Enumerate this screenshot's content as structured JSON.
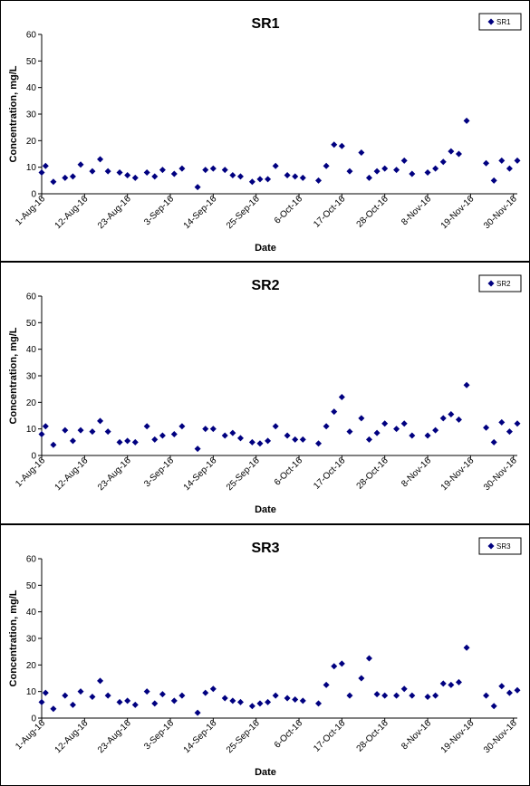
{
  "colors": {
    "marker": "#000080",
    "axis": "#000000",
    "border": "#000000",
    "background": "#ffffff"
  },
  "chart_data": [
    {
      "type": "scatter",
      "title": "SR1",
      "xlabel": "Date",
      "ylabel": "Concentration, mg/L",
      "ylim": [
        0,
        60
      ],
      "yticks": [
        "0",
        "10",
        "20",
        "30",
        "40",
        "50",
        "60"
      ],
      "xlim": [
        "2016-08-01",
        "2016-12-01"
      ],
      "xticks": [
        "1-Aug-16",
        "12-Aug-16",
        "23-Aug-16",
        "3-Sep-16",
        "14-Sep-16",
        "25-Sep-16",
        "6-Oct-16",
        "17-Oct-16",
        "28-Oct-16",
        "8-Nov-16",
        "19-Nov-16",
        "30-Nov-16"
      ],
      "grid": false,
      "legend": "top-right",
      "series": [
        {
          "name": "SR1",
          "points": [
            [
              "2016-08-01",
              8
            ],
            [
              "2016-08-02",
              10.5
            ],
            [
              "2016-08-04",
              4.5
            ],
            [
              "2016-08-07",
              6
            ],
            [
              "2016-08-09",
              6.5
            ],
            [
              "2016-08-11",
              11
            ],
            [
              "2016-08-14",
              8.5
            ],
            [
              "2016-08-16",
              13
            ],
            [
              "2016-08-18",
              8.5
            ],
            [
              "2016-08-21",
              8
            ],
            [
              "2016-08-23",
              7
            ],
            [
              "2016-08-25",
              6
            ],
            [
              "2016-08-28",
              8
            ],
            [
              "2016-08-30",
              6.5
            ],
            [
              "2016-09-01",
              9
            ],
            [
              "2016-09-04",
              7.5
            ],
            [
              "2016-09-06",
              9.5
            ],
            [
              "2016-09-10",
              2.5
            ],
            [
              "2016-09-12",
              9
            ],
            [
              "2016-09-14",
              9.5
            ],
            [
              "2016-09-17",
              9
            ],
            [
              "2016-09-19",
              7
            ],
            [
              "2016-09-21",
              6.5
            ],
            [
              "2016-09-24",
              4.5
            ],
            [
              "2016-09-26",
              5.5
            ],
            [
              "2016-09-28",
              5.5
            ],
            [
              "2016-09-30",
              10.5
            ],
            [
              "2016-10-03",
              7
            ],
            [
              "2016-10-05",
              6.5
            ],
            [
              "2016-10-07",
              6
            ],
            [
              "2016-10-11",
              5
            ],
            [
              "2016-10-13",
              10.5
            ],
            [
              "2016-10-15",
              18.5
            ],
            [
              "2016-10-17",
              18
            ],
            [
              "2016-10-19",
              8.5
            ],
            [
              "2016-10-22",
              15.5
            ],
            [
              "2016-10-24",
              6
            ],
            [
              "2016-10-26",
              8.5
            ],
            [
              "2016-10-28",
              9.5
            ],
            [
              "2016-10-31",
              9
            ],
            [
              "2016-11-02",
              12.5
            ],
            [
              "2016-11-04",
              7.5
            ],
            [
              "2016-11-08",
              8
            ],
            [
              "2016-11-10",
              9.5
            ],
            [
              "2016-11-12",
              12
            ],
            [
              "2016-11-14",
              16
            ],
            [
              "2016-11-16",
              15
            ],
            [
              "2016-11-18",
              27.5
            ],
            [
              "2016-11-23",
              11.5
            ],
            [
              "2016-11-25",
              5
            ],
            [
              "2016-11-27",
              12.5
            ],
            [
              "2016-11-29",
              9.5
            ],
            [
              "2016-12-01",
              12.5
            ]
          ]
        }
      ]
    },
    {
      "type": "scatter",
      "title": "SR2",
      "xlabel": "Date",
      "ylabel": "Concentration, mg/L",
      "ylim": [
        0,
        60
      ],
      "yticks": [
        "0",
        "10",
        "20",
        "30",
        "40",
        "50",
        "60"
      ],
      "xlim": [
        "2016-08-01",
        "2016-12-01"
      ],
      "xticks": [
        "1-Aug-16",
        "12-Aug-16",
        "23-Aug-16",
        "3-Sep-16",
        "14-Sep-16",
        "25-Sep-16",
        "6-Oct-16",
        "17-Oct-16",
        "28-Oct-16",
        "8-Nov-16",
        "19-Nov-16",
        "30-Nov-16"
      ],
      "grid": false,
      "legend": "top-right",
      "series": [
        {
          "name": "SR2",
          "points": [
            [
              "2016-08-01",
              8
            ],
            [
              "2016-08-02",
              11
            ],
            [
              "2016-08-04",
              4
            ],
            [
              "2016-08-07",
              9.5
            ],
            [
              "2016-08-09",
              5.5
            ],
            [
              "2016-08-11",
              9.5
            ],
            [
              "2016-08-14",
              9
            ],
            [
              "2016-08-16",
              13
            ],
            [
              "2016-08-18",
              9
            ],
            [
              "2016-08-21",
              5
            ],
            [
              "2016-08-23",
              5.5
            ],
            [
              "2016-08-25",
              5
            ],
            [
              "2016-08-28",
              11
            ],
            [
              "2016-08-30",
              6
            ],
            [
              "2016-09-01",
              7.5
            ],
            [
              "2016-09-04",
              8
            ],
            [
              "2016-09-06",
              11
            ],
            [
              "2016-09-10",
              2.5
            ],
            [
              "2016-09-12",
              10
            ],
            [
              "2016-09-14",
              10
            ],
            [
              "2016-09-17",
              7.5
            ],
            [
              "2016-09-19",
              8.5
            ],
            [
              "2016-09-21",
              6.5
            ],
            [
              "2016-09-24",
              5
            ],
            [
              "2016-09-26",
              4.5
            ],
            [
              "2016-09-28",
              5.5
            ],
            [
              "2016-09-30",
              11
            ],
            [
              "2016-10-03",
              7.5
            ],
            [
              "2016-10-05",
              6
            ],
            [
              "2016-10-07",
              6
            ],
            [
              "2016-10-11",
              4.5
            ],
            [
              "2016-10-13",
              11
            ],
            [
              "2016-10-15",
              16.5
            ],
            [
              "2016-10-17",
              22
            ],
            [
              "2016-10-19",
              9
            ],
            [
              "2016-10-22",
              14
            ],
            [
              "2016-10-24",
              6
            ],
            [
              "2016-10-26",
              8.5
            ],
            [
              "2016-10-28",
              12
            ],
            [
              "2016-10-31",
              10
            ],
            [
              "2016-11-02",
              12
            ],
            [
              "2016-11-04",
              7.5
            ],
            [
              "2016-11-08",
              7.5
            ],
            [
              "2016-11-10",
              9.5
            ],
            [
              "2016-11-12",
              14
            ],
            [
              "2016-11-14",
              15.5
            ],
            [
              "2016-11-16",
              13.5
            ],
            [
              "2016-11-18",
              26.5
            ],
            [
              "2016-11-23",
              10.5
            ],
            [
              "2016-11-25",
              5
            ],
            [
              "2016-11-27",
              12.5
            ],
            [
              "2016-11-29",
              9
            ],
            [
              "2016-12-01",
              12
            ]
          ]
        }
      ]
    },
    {
      "type": "scatter",
      "title": "SR3",
      "xlabel": "Date",
      "ylabel": "Concentration, mg/L",
      "ylim": [
        0,
        60
      ],
      "yticks": [
        "0",
        "10",
        "20",
        "30",
        "40",
        "50",
        "60"
      ],
      "xlim": [
        "2016-08-01",
        "2016-12-01"
      ],
      "xticks": [
        "1-Aug-16",
        "12-Aug-16",
        "23-Aug-16",
        "3-Sep-16",
        "14-Sep-16",
        "25-Sep-16",
        "6-Oct-16",
        "17-Oct-16",
        "28-Oct-16",
        "8-Nov-16",
        "19-Nov-16",
        "30-Nov-16"
      ],
      "grid": false,
      "legend": "top-right",
      "series": [
        {
          "name": "SR3",
          "points": [
            [
              "2016-08-01",
              6
            ],
            [
              "2016-08-02",
              9.5
            ],
            [
              "2016-08-04",
              3.5
            ],
            [
              "2016-08-07",
              8.5
            ],
            [
              "2016-08-09",
              5
            ],
            [
              "2016-08-11",
              10
            ],
            [
              "2016-08-14",
              8
            ],
            [
              "2016-08-16",
              14
            ],
            [
              "2016-08-18",
              8.5
            ],
            [
              "2016-08-21",
              6
            ],
            [
              "2016-08-23",
              6.5
            ],
            [
              "2016-08-25",
              5
            ],
            [
              "2016-08-28",
              10
            ],
            [
              "2016-08-30",
              5.5
            ],
            [
              "2016-09-01",
              9
            ],
            [
              "2016-09-04",
              6.5
            ],
            [
              "2016-09-06",
              8.5
            ],
            [
              "2016-09-10",
              2
            ],
            [
              "2016-09-12",
              9.5
            ],
            [
              "2016-09-14",
              11
            ],
            [
              "2016-09-17",
              7.5
            ],
            [
              "2016-09-19",
              6.5
            ],
            [
              "2016-09-21",
              6
            ],
            [
              "2016-09-24",
              4.5
            ],
            [
              "2016-09-26",
              5.5
            ],
            [
              "2016-09-28",
              6
            ],
            [
              "2016-09-30",
              8.5
            ],
            [
              "2016-10-03",
              7.5
            ],
            [
              "2016-10-05",
              7
            ],
            [
              "2016-10-07",
              6.5
            ],
            [
              "2016-10-11",
              5.5
            ],
            [
              "2016-10-13",
              12.5
            ],
            [
              "2016-10-15",
              19.5
            ],
            [
              "2016-10-17",
              20.5
            ],
            [
              "2016-10-19",
              8.5
            ],
            [
              "2016-10-22",
              15
            ],
            [
              "2016-10-24",
              22.5
            ],
            [
              "2016-10-26",
              9
            ],
            [
              "2016-10-28",
              8.5
            ],
            [
              "2016-10-31",
              8.5
            ],
            [
              "2016-11-02",
              11
            ],
            [
              "2016-11-04",
              8.5
            ],
            [
              "2016-11-08",
              8
            ],
            [
              "2016-11-10",
              8.5
            ],
            [
              "2016-11-12",
              13
            ],
            [
              "2016-11-14",
              12.5
            ],
            [
              "2016-11-16",
              13.5
            ],
            [
              "2016-11-18",
              26.5
            ],
            [
              "2016-11-23",
              8.5
            ],
            [
              "2016-11-25",
              4.5
            ],
            [
              "2016-11-27",
              12
            ],
            [
              "2016-11-29",
              9.5
            ],
            [
              "2016-12-01",
              10.5
            ]
          ]
        }
      ]
    }
  ]
}
